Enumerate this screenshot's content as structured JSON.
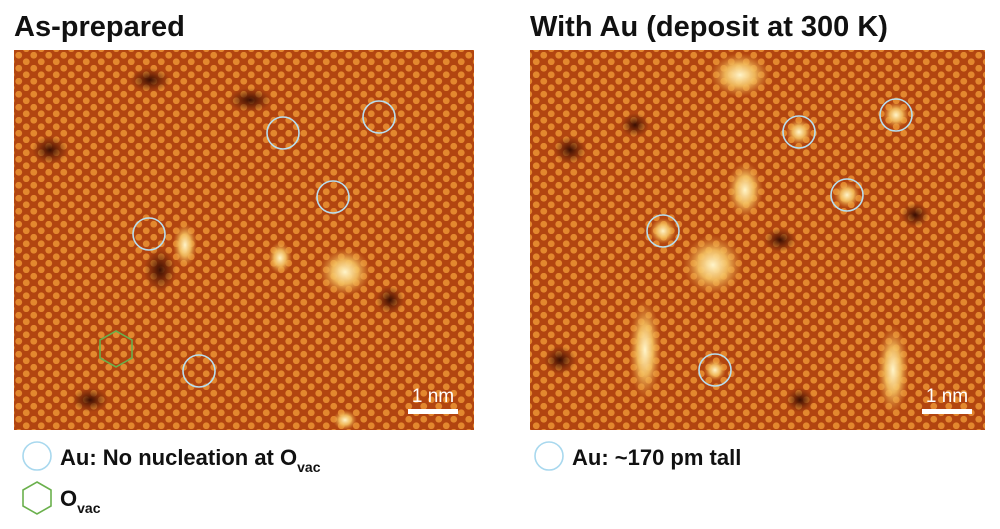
{
  "panels": [
    {
      "title": "As-prepared",
      "scale_bar": "1 nm",
      "legend": [
        {
          "text": "Au: No nucleation at O",
          "sub": "vac"
        },
        {
          "text": "O",
          "sub": "vac"
        }
      ]
    },
    {
      "title": "With Au (deposit at 300 K)",
      "scale_bar": "1 nm",
      "legend": [
        {
          "text": "Au: ~170 pm tall"
        }
      ]
    }
  ]
}
